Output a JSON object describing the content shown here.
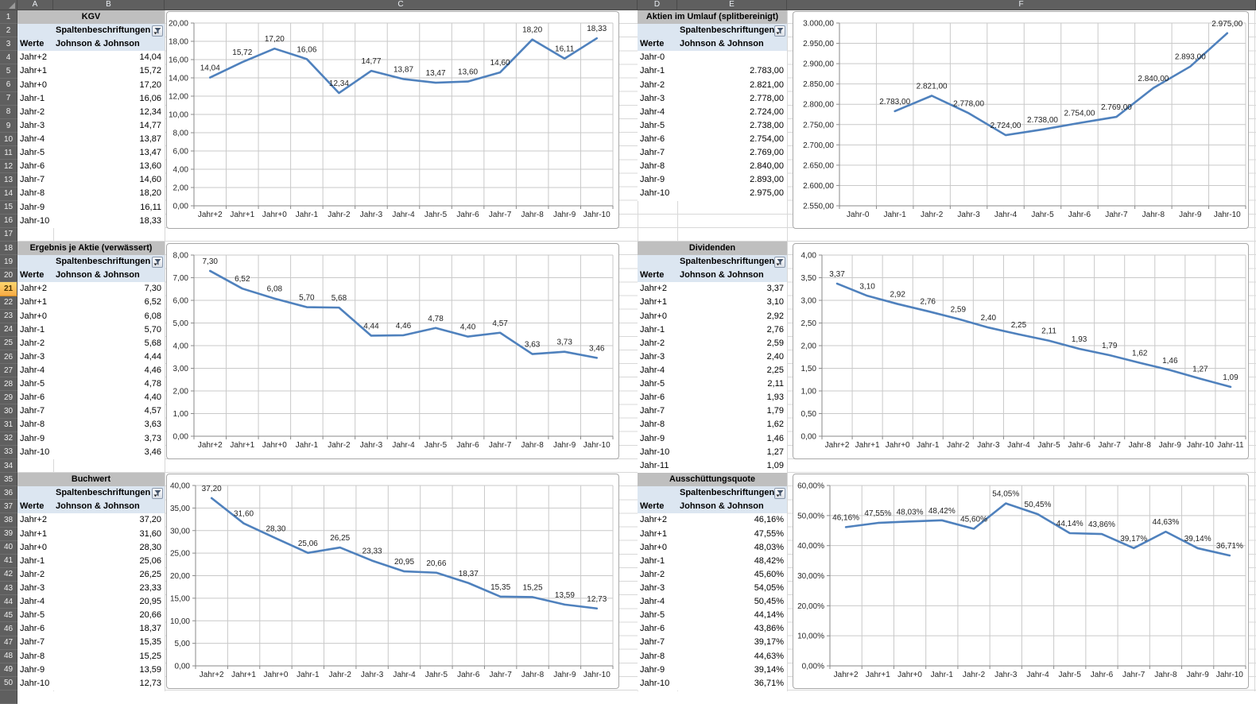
{
  "sheet": {
    "columns": [
      "A",
      "B",
      "C",
      "D",
      "E",
      "F"
    ],
    "row_count": 50,
    "selected_row": 21,
    "colors": {
      "header_bg": "#5f5f5f",
      "selected_row_fill": "#f9b64a",
      "pivot_title_fill": "#bfbfbf",
      "pivot_header_fill": "#dce6f1",
      "gridline": "#d8d8d8",
      "series_line": "#4f81bd"
    }
  },
  "labels": {
    "spalten": "Spaltenbeschriftungen",
    "werte": "Werte"
  },
  "company": "Johnson & Johnson",
  "tables": [
    {
      "id": "kgv",
      "title": "KGV",
      "rows": [
        {
          "label": "Jahr+2",
          "value": "14,04"
        },
        {
          "label": "Jahr+1",
          "value": "15,72"
        },
        {
          "label": "Jahr+0",
          "value": "17,20"
        },
        {
          "label": "Jahr-1",
          "value": "16,06"
        },
        {
          "label": "Jahr-2",
          "value": "12,34"
        },
        {
          "label": "Jahr-3",
          "value": "14,77"
        },
        {
          "label": "Jahr-4",
          "value": "13,87"
        },
        {
          "label": "Jahr-5",
          "value": "13,47"
        },
        {
          "label": "Jahr-6",
          "value": "13,60"
        },
        {
          "label": "Jahr-7",
          "value": "14,60"
        },
        {
          "label": "Jahr-8",
          "value": "18,20"
        },
        {
          "label": "Jahr-9",
          "value": "16,11"
        },
        {
          "label": "Jahr-10",
          "value": "18,33"
        }
      ]
    },
    {
      "id": "aktien",
      "title": "Aktien im Umlauf (splitbereinigt)",
      "rows": [
        {
          "label": "Jahr-0",
          "value": ""
        },
        {
          "label": "Jahr-1",
          "value": "2.783,00"
        },
        {
          "label": "Jahr-2",
          "value": "2.821,00"
        },
        {
          "label": "Jahr-3",
          "value": "2.778,00"
        },
        {
          "label": "Jahr-4",
          "value": "2.724,00"
        },
        {
          "label": "Jahr-5",
          "value": "2.738,00"
        },
        {
          "label": "Jahr-6",
          "value": "2.754,00"
        },
        {
          "label": "Jahr-7",
          "value": "2.769,00"
        },
        {
          "label": "Jahr-8",
          "value": "2.840,00"
        },
        {
          "label": "Jahr-9",
          "value": "2.893,00"
        },
        {
          "label": "Jahr-10",
          "value": "2.975,00"
        }
      ]
    },
    {
      "id": "eps",
      "title": "Ergebnis je Aktie (verwässert)",
      "rows": [
        {
          "label": "Jahr+2",
          "value": "7,30"
        },
        {
          "label": "Jahr+1",
          "value": "6,52"
        },
        {
          "label": "Jahr+0",
          "value": "6,08"
        },
        {
          "label": "Jahr-1",
          "value": "5,70"
        },
        {
          "label": "Jahr-2",
          "value": "5,68"
        },
        {
          "label": "Jahr-3",
          "value": "4,44"
        },
        {
          "label": "Jahr-4",
          "value": "4,46"
        },
        {
          "label": "Jahr-5",
          "value": "4,78"
        },
        {
          "label": "Jahr-6",
          "value": "4,40"
        },
        {
          "label": "Jahr-7",
          "value": "4,57"
        },
        {
          "label": "Jahr-8",
          "value": "3,63"
        },
        {
          "label": "Jahr-9",
          "value": "3,73"
        },
        {
          "label": "Jahr-10",
          "value": "3,46"
        }
      ]
    },
    {
      "id": "dividenden",
      "title": "Dividenden",
      "rows": [
        {
          "label": "Jahr+2",
          "value": "3,37"
        },
        {
          "label": "Jahr+1",
          "value": "3,10"
        },
        {
          "label": "Jahr+0",
          "value": "2,92"
        },
        {
          "label": "Jahr-1",
          "value": "2,76"
        },
        {
          "label": "Jahr-2",
          "value": "2,59"
        },
        {
          "label": "Jahr-3",
          "value": "2,40"
        },
        {
          "label": "Jahr-4",
          "value": "2,25"
        },
        {
          "label": "Jahr-5",
          "value": "2,11"
        },
        {
          "label": "Jahr-6",
          "value": "1,93"
        },
        {
          "label": "Jahr-7",
          "value": "1,79"
        },
        {
          "label": "Jahr-8",
          "value": "1,62"
        },
        {
          "label": "Jahr-9",
          "value": "1,46"
        },
        {
          "label": "Jahr-10",
          "value": "1,27"
        },
        {
          "label": "Jahr-11",
          "value": "1,09"
        }
      ]
    },
    {
      "id": "buchwert",
      "title": "Buchwert",
      "rows": [
        {
          "label": "Jahr+2",
          "value": "37,20"
        },
        {
          "label": "Jahr+1",
          "value": "31,60"
        },
        {
          "label": "Jahr+0",
          "value": "28,30"
        },
        {
          "label": "Jahr-1",
          "value": "25,06"
        },
        {
          "label": "Jahr-2",
          "value": "26,25"
        },
        {
          "label": "Jahr-3",
          "value": "23,33"
        },
        {
          "label": "Jahr-4",
          "value": "20,95"
        },
        {
          "label": "Jahr-5",
          "value": "20,66"
        },
        {
          "label": "Jahr-6",
          "value": "18,37"
        },
        {
          "label": "Jahr-7",
          "value": "15,35"
        },
        {
          "label": "Jahr-8",
          "value": "15,25"
        },
        {
          "label": "Jahr-9",
          "value": "13,59"
        },
        {
          "label": "Jahr-10",
          "value": "12,73"
        }
      ]
    },
    {
      "id": "quote",
      "title": "Ausschüttungsquote",
      "rows": [
        {
          "label": "Jahr+2",
          "value": "46,16%"
        },
        {
          "label": "Jahr+1",
          "value": "47,55%"
        },
        {
          "label": "Jahr+0",
          "value": "48,03%"
        },
        {
          "label": "Jahr-1",
          "value": "48,42%"
        },
        {
          "label": "Jahr-2",
          "value": "45,60%"
        },
        {
          "label": "Jahr-3",
          "value": "54,05%"
        },
        {
          "label": "Jahr-4",
          "value": "50,45%"
        },
        {
          "label": "Jahr-5",
          "value": "44,14%"
        },
        {
          "label": "Jahr-6",
          "value": "43,86%"
        },
        {
          "label": "Jahr-7",
          "value": "39,17%"
        },
        {
          "label": "Jahr-8",
          "value": "44,63%"
        },
        {
          "label": "Jahr-9",
          "value": "39,14%"
        },
        {
          "label": "Jahr-10",
          "value": "36,71%"
        }
      ]
    }
  ],
  "chart_data": [
    {
      "type": "line",
      "title": "KGV",
      "legend": "none",
      "grid": true,
      "categories": [
        "Jahr+2",
        "Jahr+1",
        "Jahr+0",
        "Jahr-1",
        "Jahr-2",
        "Jahr-3",
        "Jahr-4",
        "Jahr-5",
        "Jahr-6",
        "Jahr-7",
        "Jahr-8",
        "Jahr-9",
        "Jahr-10"
      ],
      "values": [
        14.04,
        15.72,
        17.2,
        16.06,
        12.34,
        14.77,
        13.87,
        13.47,
        13.6,
        14.6,
        18.2,
        16.11,
        18.33
      ],
      "point_labels": [
        "14,04",
        "15,72",
        "17,20",
        "16,06",
        "12,34",
        "14,77",
        "13,87",
        "13,47",
        "13,60",
        "14,60",
        "18,20",
        "16,11",
        "18,33"
      ],
      "y_ticks": [
        "0,00",
        "2,00",
        "4,00",
        "6,00",
        "8,00",
        "10,00",
        "12,00",
        "14,00",
        "16,00",
        "18,00",
        "20,00"
      ],
      "ylim": [
        0,
        20
      ],
      "line_color": "#4f81bd"
    },
    {
      "type": "line",
      "title": "Aktien im Umlauf (splitbereinigt)",
      "legend": "none",
      "grid": true,
      "categories": [
        "Jahr-0",
        "Jahr-1",
        "Jahr-2",
        "Jahr-3",
        "Jahr-4",
        "Jahr-5",
        "Jahr-6",
        "Jahr-7",
        "Jahr-8",
        "Jahr-9",
        "Jahr-10"
      ],
      "values": [
        null,
        2783,
        2821,
        2778,
        2724,
        2738,
        2754,
        2769,
        2840,
        2893,
        2975
      ],
      "point_labels": [
        "",
        "2.783,00",
        "2.821,00",
        "2.778,00",
        "2.724,00",
        "2.738,00",
        "2.754,00",
        "2.769,00",
        "2.840,00",
        "2.893,00",
        "2.975,00"
      ],
      "y_ticks": [
        "2.550,00",
        "2.600,00",
        "2.650,00",
        "2.700,00",
        "2.750,00",
        "2.800,00",
        "2.850,00",
        "2.900,00",
        "2.950,00",
        "3.000,00"
      ],
      "ylim": [
        2550,
        3000
      ],
      "line_color": "#4f81bd"
    },
    {
      "type": "line",
      "title": "Ergebnis je Aktie (verwässert)",
      "legend": "none",
      "grid": true,
      "categories": [
        "Jahr+2",
        "Jahr+1",
        "Jahr+0",
        "Jahr-1",
        "Jahr-2",
        "Jahr-3",
        "Jahr-4",
        "Jahr-5",
        "Jahr-6",
        "Jahr-7",
        "Jahr-8",
        "Jahr-9",
        "Jahr-10"
      ],
      "values": [
        7.3,
        6.52,
        6.08,
        5.7,
        5.68,
        4.44,
        4.46,
        4.78,
        4.4,
        4.57,
        3.63,
        3.73,
        3.46
      ],
      "point_labels": [
        "7,30",
        "6,52",
        "6,08",
        "5,70",
        "5,68",
        "4,44",
        "4,46",
        "4,78",
        "4,40",
        "4,57",
        "3,63",
        "3,73",
        "3,46"
      ],
      "y_ticks": [
        "0,00",
        "1,00",
        "2,00",
        "3,00",
        "4,00",
        "5,00",
        "6,00",
        "7,00",
        "8,00"
      ],
      "ylim": [
        0,
        8
      ],
      "line_color": "#4f81bd"
    },
    {
      "type": "line",
      "title": "Dividenden",
      "legend": "none",
      "grid": true,
      "categories": [
        "Jahr+2",
        "Jahr+1",
        "Jahr+0",
        "Jahr-1",
        "Jahr-2",
        "Jahr-3",
        "Jahr-4",
        "Jahr-5",
        "Jahr-6",
        "Jahr-7",
        "Jahr-8",
        "Jahr-9",
        "Jahr-10",
        "Jahr-11"
      ],
      "values": [
        3.37,
        3.1,
        2.92,
        2.76,
        2.59,
        2.4,
        2.25,
        2.11,
        1.93,
        1.79,
        1.62,
        1.46,
        1.27,
        1.09
      ],
      "point_labels": [
        "3,37",
        "3,10",
        "2,92",
        "2,76",
        "2,59",
        "2,40",
        "2,25",
        "2,11",
        "1,93",
        "1,79",
        "1,62",
        "1,46",
        "1,27",
        "1,09"
      ],
      "y_ticks": [
        "0,00",
        "0,50",
        "1,00",
        "1,50",
        "2,00",
        "2,50",
        "3,00",
        "3,50",
        "4,00"
      ],
      "ylim": [
        0,
        4
      ],
      "line_color": "#4f81bd"
    },
    {
      "type": "line",
      "title": "Buchwert",
      "legend": "none",
      "grid": true,
      "categories": [
        "Jahr+2",
        "Jahr+1",
        "Jahr+0",
        "Jahr-1",
        "Jahr-2",
        "Jahr-3",
        "Jahr-4",
        "Jahr-5",
        "Jahr-6",
        "Jahr-7",
        "Jahr-8",
        "Jahr-9",
        "Jahr-10"
      ],
      "values": [
        37.2,
        31.6,
        28.3,
        25.06,
        26.25,
        23.33,
        20.95,
        20.66,
        18.37,
        15.35,
        15.25,
        13.59,
        12.73
      ],
      "point_labels": [
        "37,20",
        "31,60",
        "28,30",
        "25,06",
        "26,25",
        "23,33",
        "20,95",
        "20,66",
        "18,37",
        "15,35",
        "15,25",
        "13,59",
        "12,73"
      ],
      "y_ticks": [
        "0,00",
        "5,00",
        "10,00",
        "15,00",
        "20,00",
        "25,00",
        "30,00",
        "35,00",
        "40,00"
      ],
      "ylim": [
        0,
        40
      ],
      "line_color": "#4f81bd"
    },
    {
      "type": "line",
      "title": "Ausschüttungsquote",
      "legend": "none",
      "grid": true,
      "categories": [
        "Jahr+2",
        "Jahr+1",
        "Jahr+0",
        "Jahr-1",
        "Jahr-2",
        "Jahr-3",
        "Jahr-4",
        "Jahr-5",
        "Jahr-6",
        "Jahr-7",
        "Jahr-8",
        "Jahr-9",
        "Jahr-10"
      ],
      "values": [
        46.16,
        47.55,
        48.03,
        48.42,
        45.6,
        54.05,
        50.45,
        44.14,
        43.86,
        39.17,
        44.63,
        39.14,
        36.71
      ],
      "point_labels": [
        "46,16%",
        "47,55%",
        "48,03%",
        "48,42%",
        "45,60%",
        "54,05%",
        "50,45%",
        "44,14%",
        "43,86%",
        "39,17%",
        "44,63%",
        "39,14%",
        "36,71%"
      ],
      "y_ticks": [
        "0,00%",
        "10,00%",
        "20,00%",
        "30,00%",
        "40,00%",
        "50,00%",
        "60,00%"
      ],
      "ylim": [
        0,
        60
      ],
      "line_color": "#4f81bd"
    }
  ]
}
